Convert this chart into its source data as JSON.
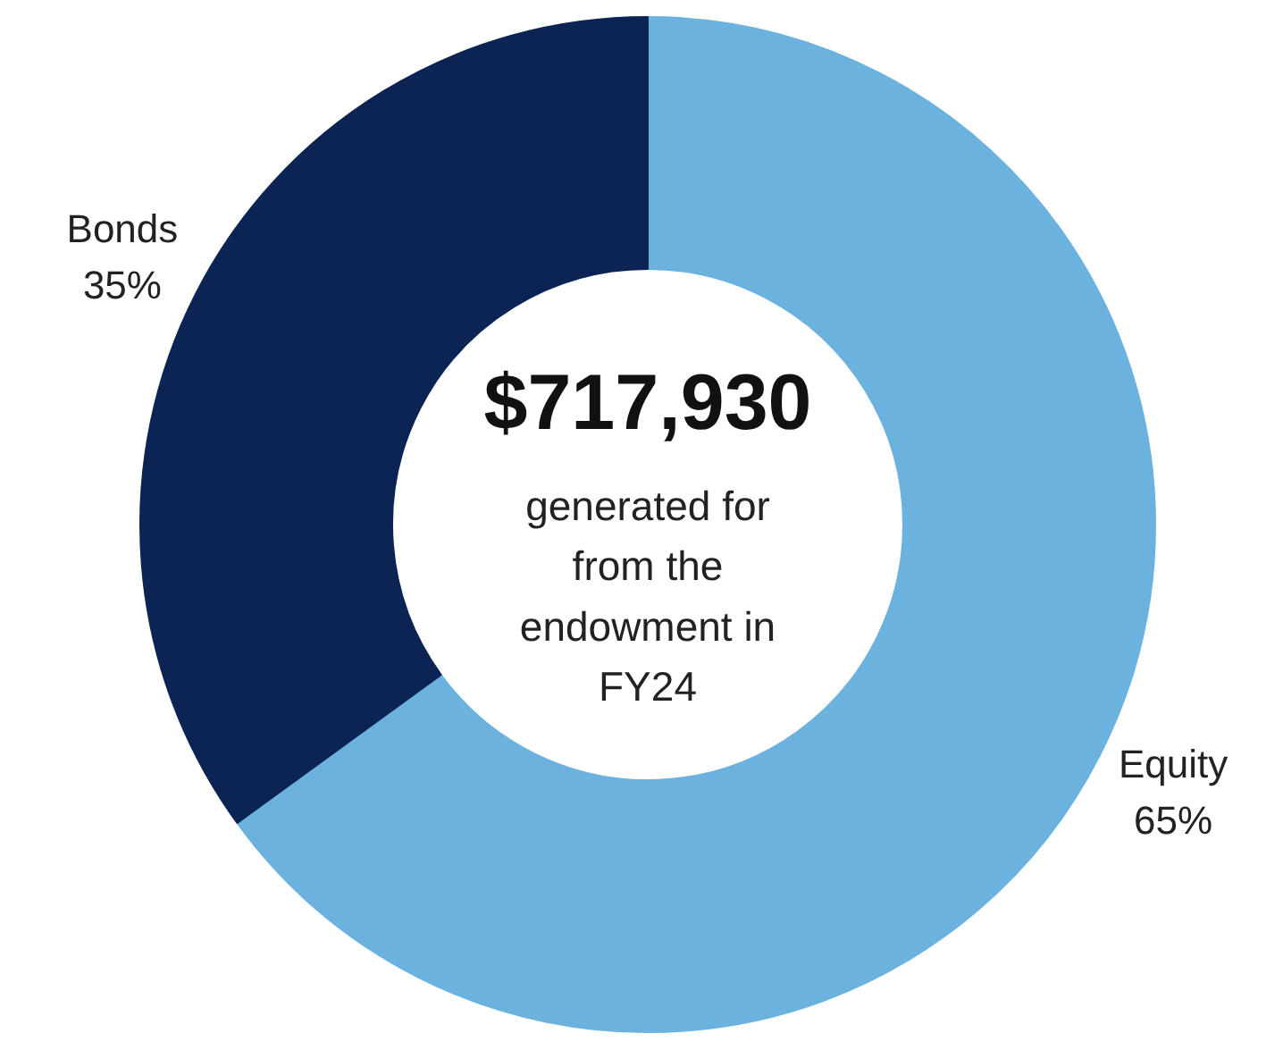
{
  "chart_data": {
    "type": "donut",
    "title": "$717,930",
    "subtitle": "generated for\nfrom the\nendowment in\nFY24",
    "categories": [
      "Equity",
      "Bonds"
    ],
    "values": [
      65,
      35
    ],
    "colors": [
      "#6cb2de",
      "#0c2454"
    ],
    "value_labels": [
      "65%",
      "35%"
    ]
  }
}
